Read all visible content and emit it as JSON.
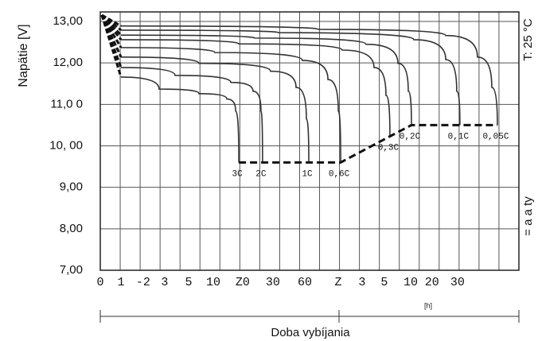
{
  "chart_data": {
    "type": "line",
    "y_label": "Napätie  [V]",
    "x_label": "Doba vybíjania",
    "x_unit": "[h]",
    "temperature": "T: 25 °C",
    "right_label": "= a a ty",
    "grid": true,
    "xlim": [
      0,
      21
    ],
    "ylim": [
      7,
      13.23
    ],
    "yticks": [
      {
        "value": 13,
        "label": "13,00"
      },
      {
        "value": 12,
        "label": "12,00"
      },
      {
        "value": 11,
        "label": "11,0 0"
      },
      {
        "value": 10,
        "label": "10, 00"
      },
      {
        "value": 9,
        "label": "9,00"
      },
      {
        "value": 8,
        "label": "8,00"
      },
      {
        "value": 7,
        "label": "7,00"
      }
    ],
    "xticks": [
      {
        "value": 0,
        "label": "0"
      },
      {
        "value": 1.04,
        "label": "1"
      },
      {
        "value": 2.15,
        "label": "-2"
      },
      {
        "value": 3.23,
        "label": "3"
      },
      {
        "value": 4.43,
        "label": "5"
      },
      {
        "value": 5.67,
        "label": "10"
      },
      {
        "value": 7.14,
        "label": "Z0"
      },
      {
        "value": 8.66,
        "label": "30"
      },
      {
        "value": 10.26,
        "label": "60"
      },
      {
        "value": 11.94,
        "label": "Z"
      },
      {
        "value": 13.13,
        "label": "3"
      },
      {
        "value": 14.25,
        "label": "5"
      },
      {
        "value": 15.57,
        "label": "10"
      },
      {
        "value": 16.64,
        "label": "20"
      },
      {
        "value": 17.92,
        "label": "30"
      }
    ],
    "series": [
      {
        "name": "3C",
        "color": "#333333",
        "x": [
          1.04,
          2.95,
          4.95,
          6.35,
          6.79,
          6.95
        ],
        "values": [
          11.66,
          11.37,
          11.26,
          11.13,
          10.84,
          9.6
        ]
      },
      {
        "name": "2C",
        "color": "#333333",
        "x": [
          1.04,
          3.75,
          6.55,
          7.66,
          8.06,
          8.14
        ],
        "values": [
          11.89,
          11.7,
          11.53,
          11.32,
          10.84,
          9.6
        ]
      },
      {
        "name": "1C",
        "color": "#333333",
        "x": [
          1.04,
          4.95,
          8.54,
          9.82,
          10.34,
          10.46
        ],
        "values": [
          12.14,
          11.99,
          11.8,
          11.41,
          10.65,
          9.6
        ]
      },
      {
        "name": "0,6C",
        "color": "#333333",
        "x": [
          1.04,
          5.75,
          10.14,
          11.42,
          11.94,
          12.06
        ],
        "values": [
          12.37,
          12.25,
          12.06,
          11.6,
          10.84,
          9.6
        ]
      },
      {
        "name": "0,3C",
        "color": "#333333",
        "x": [
          1.04,
          6.95,
          12.14,
          13.73,
          14.33,
          14.53
        ],
        "values": [
          12.56,
          12.46,
          12.31,
          11.89,
          11.22,
          10.23
        ]
      },
      {
        "name": "0,2C",
        "color": "#333333",
        "x": [
          1.04,
          7.74,
          13.33,
          14.93,
          15.45,
          15.61
        ],
        "values": [
          12.67,
          12.6,
          12.45,
          11.99,
          11.32,
          10.5
        ]
      },
      {
        "name": "0,1C",
        "color": "#333333",
        "x": [
          1.04,
          8.94,
          15.73,
          17.33,
          17.88,
          18.04
        ],
        "values": [
          12.79,
          12.73,
          12.56,
          12.08,
          11.32,
          10.5
        ]
      },
      {
        "name": "0,05C",
        "color": "#333333",
        "x": [
          1.04,
          10.94,
          17.33,
          18.92,
          19.64,
          19.92
        ],
        "values": [
          12.89,
          12.81,
          12.66,
          12.14,
          11.41,
          10.5
        ]
      }
    ]
  }
}
